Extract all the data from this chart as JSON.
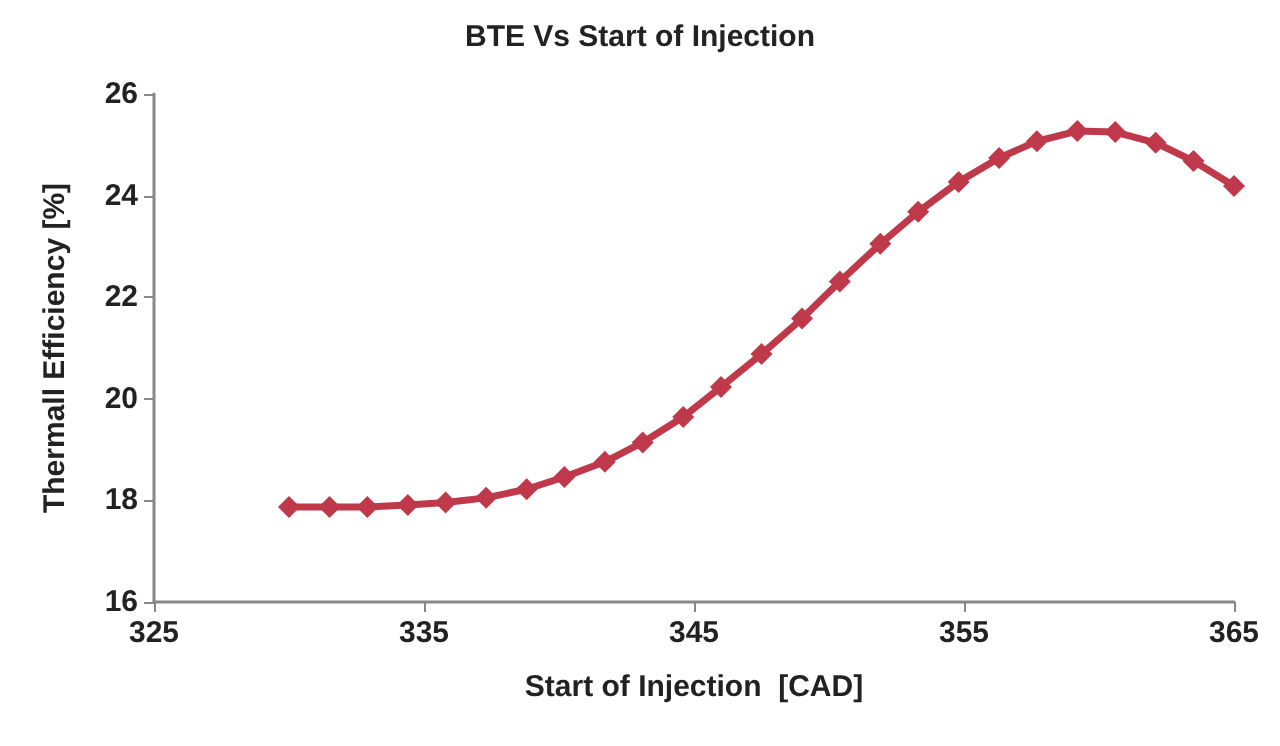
{
  "chart_data": {
    "type": "line",
    "title": "BTE Vs Start of Injection",
    "xlabel": "Start of Injection  [CAD]",
    "ylabel": "Thermall Efficiency [%]",
    "x": [
      330,
      331.5,
      332.9,
      334.4,
      335.8,
      337.3,
      338.8,
      340.2,
      341.7,
      343.1,
      344.6,
      346.0,
      347.5,
      349.0,
      350.4,
      351.9,
      353.3,
      354.8,
      356.3,
      357.7,
      359.2,
      360.6,
      362.1,
      363.5,
      365
    ],
    "series": [
      {
        "color": "#c0394b",
        "values": [
          17.87,
          17.87,
          17.87,
          17.91,
          17.96,
          18.05,
          18.22,
          18.46,
          18.76,
          19.14,
          19.64,
          20.23,
          20.88,
          21.58,
          22.31,
          23.05,
          23.68,
          24.27,
          24.74,
          25.07,
          25.27,
          25.25,
          25.04,
          24.68,
          24.19
        ]
      }
    ],
    "xlim": [
      325,
      365
    ],
    "xticks": [
      325,
      335,
      345,
      355,
      365
    ],
    "ylim": [
      16,
      26
    ],
    "yticks": [
      16,
      18,
      20,
      22,
      24,
      26
    ],
    "grid": false,
    "marker": "diamond",
    "line_style": "solid"
  }
}
